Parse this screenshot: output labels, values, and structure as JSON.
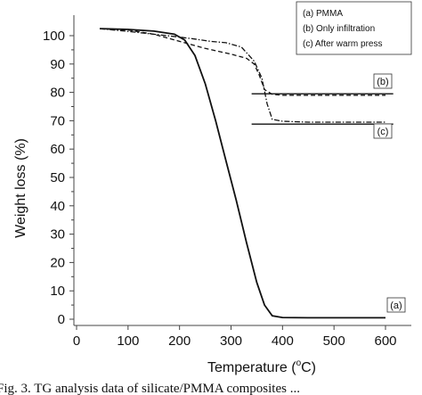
{
  "chart_data": {
    "type": "line",
    "title": "",
    "xlabel": "Temperature (°C)",
    "xlabel_main": "Temperature (",
    "xlabel_sup": "o",
    "xlabel_tail": "C)",
    "ylabel": "Weight loss (%)",
    "xlim": [
      0,
      650
    ],
    "ylim": [
      0,
      105
    ],
    "xticks": [
      0,
      100,
      200,
      300,
      400,
      500,
      600
    ],
    "yticks": [
      0,
      10,
      20,
      30,
      40,
      50,
      60,
      70,
      80,
      90,
      100
    ],
    "grid": false,
    "legend": {
      "placement": "top-right",
      "entries": [
        "(a) PMMA",
        "(b) Only infiltration",
        "(c) After warm press"
      ]
    },
    "series": [
      {
        "name": "(a) PMMA",
        "tag": "(a)",
        "style": "solid",
        "x": [
          45,
          100,
          150,
          190,
          210,
          230,
          250,
          270,
          290,
          310,
          330,
          350,
          365,
          380,
          400,
          450,
          500,
          550,
          600
        ],
        "y": [
          102.5,
          102.2,
          101.6,
          100.5,
          98.5,
          93,
          83,
          70,
          56,
          42,
          27,
          13,
          5,
          1.2,
          0.6,
          0.5,
          0.5,
          0.5,
          0.5
        ]
      },
      {
        "name": "(b) Only infiltration",
        "tag": "(b)",
        "style": "dashed",
        "x": [
          45,
          100,
          150,
          200,
          250,
          300,
          330,
          345,
          355,
          365,
          380,
          400,
          450,
          500,
          550,
          600
        ],
        "y": [
          102.5,
          102.0,
          100.5,
          98.0,
          95.5,
          93.5,
          92.0,
          90.0,
          86.0,
          81.0,
          79.3,
          79.0,
          79.0,
          79.0,
          79.0,
          79.0
        ]
      },
      {
        "name": "(c) After warm press",
        "tag": "(c)",
        "style": "dash-dot",
        "x": [
          45,
          100,
          150,
          200,
          230,
          260,
          290,
          320,
          345,
          360,
          370,
          380,
          400,
          450,
          500,
          550,
          600
        ],
        "y": [
          102.5,
          101.5,
          100.5,
          99.5,
          98.8,
          98.0,
          97.5,
          96.0,
          91.0,
          85.0,
          76.0,
          70.5,
          69.8,
          69.5,
          69.5,
          69.5,
          69.5
        ]
      }
    ],
    "reference_lines": [
      {
        "tag": "(b)",
        "y": 79.5,
        "x": [
          340,
          615
        ]
      },
      {
        "tag": "(c)",
        "y": 68.8,
        "x": [
          340,
          615
        ]
      }
    ]
  },
  "caption": "Fig. 3. TG analysis data of silicate/PMMA composites ..."
}
